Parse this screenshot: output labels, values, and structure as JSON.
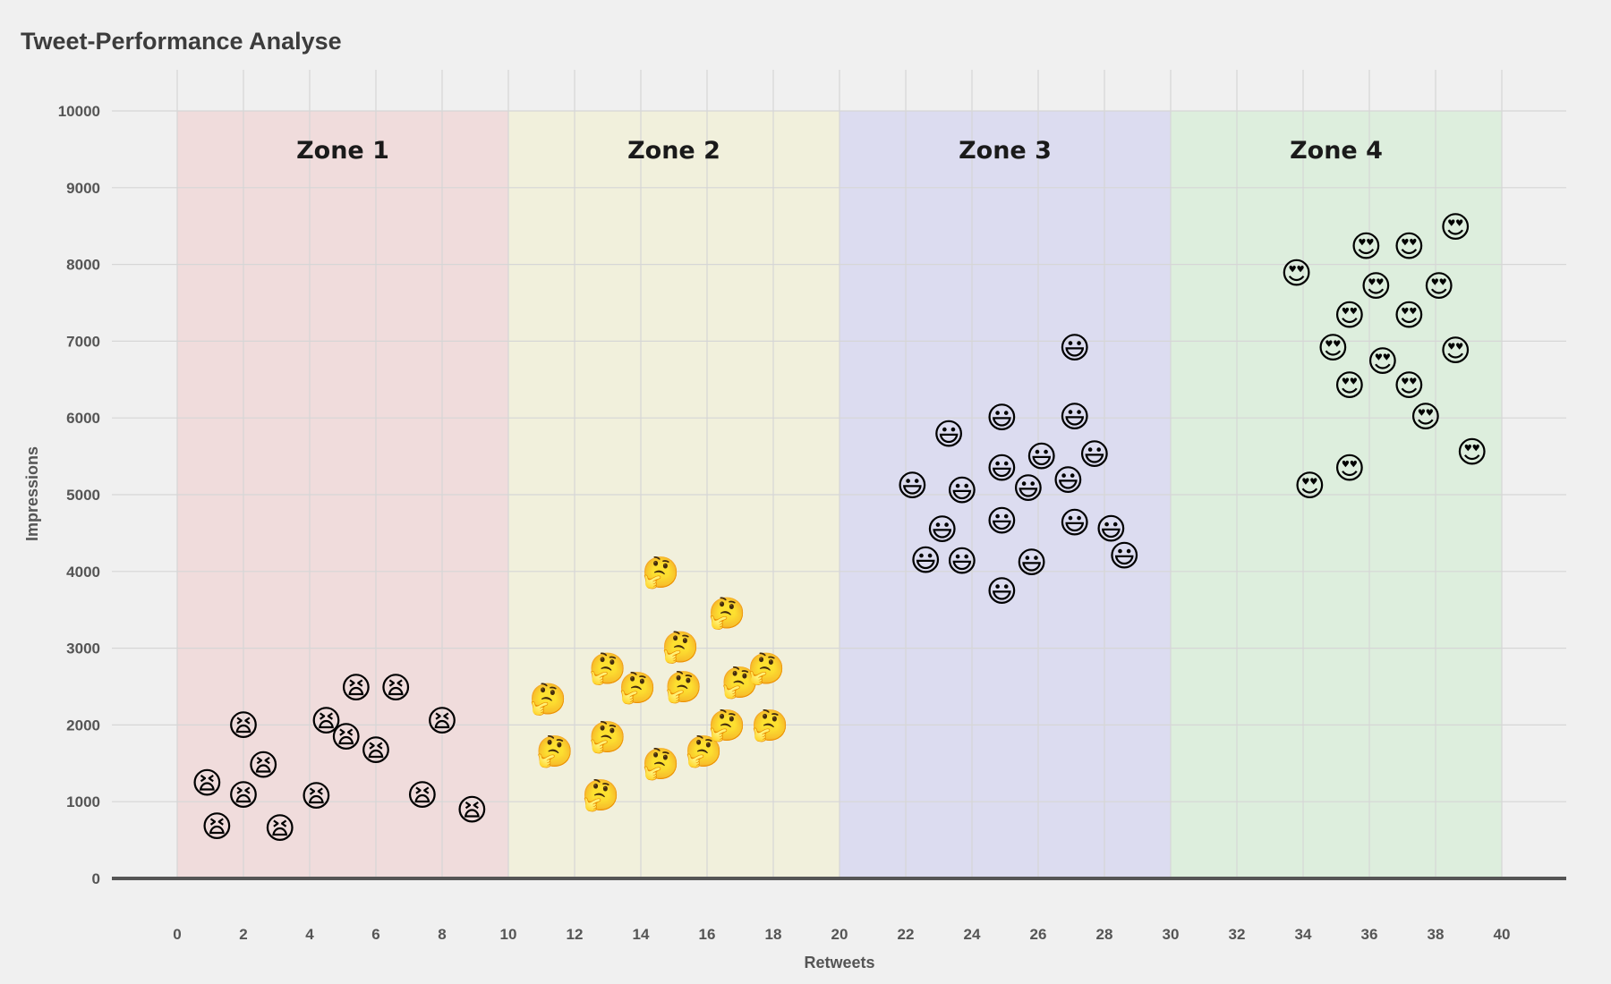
{
  "chart_data": {
    "type": "scatter",
    "title": "Tweet-Performance Analyse",
    "xlabel": "Retweets",
    "ylabel": "Impressions",
    "xlim": [
      -2,
      42
    ],
    "ylim": [
      0,
      10000
    ],
    "x_ticks": [
      0,
      2,
      4,
      6,
      8,
      10,
      12,
      14,
      16,
      18,
      20,
      22,
      24,
      26,
      28,
      30,
      32,
      34,
      36,
      38,
      40
    ],
    "y_ticks": [
      0,
      1000,
      2000,
      3000,
      4000,
      5000,
      6000,
      7000,
      8000,
      9000,
      10000
    ],
    "grid": true,
    "zones": [
      {
        "label": "Zone 1",
        "x_range": [
          0,
          10
        ],
        "color": "#f0dcdc"
      },
      {
        "label": "Zone 2",
        "x_range": [
          10,
          20
        ],
        "color": "#f1f0dc"
      },
      {
        "label": "Zone 3",
        "x_range": [
          20,
          30
        ],
        "color": "#dcdcf0"
      },
      {
        "label": "Zone 4",
        "x_range": [
          30,
          40
        ],
        "color": "#ddeedd"
      }
    ],
    "series": [
      {
        "marker": "tired-face-emoji",
        "glyph": "😫",
        "points": [
          [
            0.9,
            1250
          ],
          [
            1.2,
            680
          ],
          [
            2.0,
            1090
          ],
          [
            2.0,
            2000
          ],
          [
            2.6,
            1480
          ],
          [
            3.1,
            660
          ],
          [
            4.2,
            1080
          ],
          [
            4.5,
            2060
          ],
          [
            5.1,
            1850
          ],
          [
            5.4,
            2490
          ],
          [
            6.0,
            1670
          ],
          [
            6.6,
            2490
          ],
          [
            7.4,
            1090
          ],
          [
            8.0,
            2060
          ],
          [
            8.9,
            900
          ]
        ]
      },
      {
        "marker": "thinking-face-emoji",
        "glyph": "🤔",
        "points": [
          [
            11.2,
            2340
          ],
          [
            11.4,
            1660
          ],
          [
            12.8,
            1090
          ],
          [
            13.0,
            2740
          ],
          [
            13.0,
            1850
          ],
          [
            13.9,
            2490
          ],
          [
            14.6,
            1500
          ],
          [
            14.6,
            3990
          ],
          [
            15.2,
            3020
          ],
          [
            15.3,
            2500
          ],
          [
            15.9,
            1660
          ],
          [
            16.6,
            3460
          ],
          [
            16.6,
            2000
          ],
          [
            17.0,
            2560
          ],
          [
            17.8,
            2740
          ],
          [
            17.9,
            2000
          ]
        ]
      },
      {
        "marker": "grinning-face-emoji",
        "glyph": "😃",
        "points": [
          [
            22.2,
            5120
          ],
          [
            22.6,
            4150
          ],
          [
            23.1,
            4550
          ],
          [
            23.3,
            5790
          ],
          [
            23.7,
            5060
          ],
          [
            23.7,
            4140
          ],
          [
            24.9,
            6010
          ],
          [
            24.9,
            5350
          ],
          [
            24.9,
            4660
          ],
          [
            24.9,
            3750
          ],
          [
            25.7,
            5090
          ],
          [
            25.8,
            4120
          ],
          [
            26.1,
            5500
          ],
          [
            26.9,
            5190
          ],
          [
            27.1,
            6920
          ],
          [
            27.1,
            6020
          ],
          [
            27.1,
            4640
          ],
          [
            27.7,
            5530
          ],
          [
            28.2,
            4560
          ],
          [
            28.6,
            4210
          ]
        ]
      },
      {
        "marker": "heart-eyes-emoji",
        "glyph": "😍",
        "points": [
          [
            33.8,
            7890
          ],
          [
            34.2,
            5120
          ],
          [
            34.9,
            6920
          ],
          [
            35.4,
            7340
          ],
          [
            35.4,
            6430
          ],
          [
            35.4,
            5350
          ],
          [
            35.9,
            8240
          ],
          [
            36.2,
            7720
          ],
          [
            36.4,
            6740
          ],
          [
            37.2,
            8240
          ],
          [
            37.2,
            7340
          ],
          [
            37.2,
            6430
          ],
          [
            37.7,
            6020
          ],
          [
            38.1,
            7720
          ],
          [
            38.6,
            8490
          ],
          [
            38.6,
            6880
          ],
          [
            39.1,
            5560
          ]
        ]
      }
    ]
  }
}
